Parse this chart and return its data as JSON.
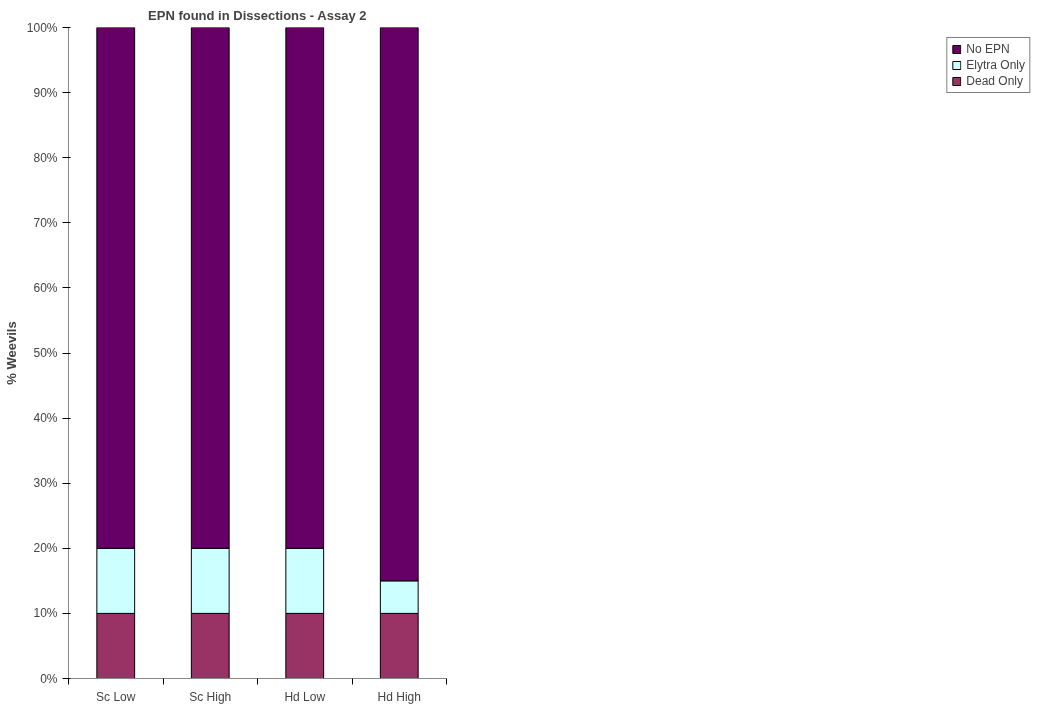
{
  "chart_data": {
    "type": "bar",
    "title": "EPN found in Dissections - Assay 2",
    "ylabel": "% Weevils",
    "categories": [
      "Sc Low",
      "Sc High",
      "Hd Low",
      "Hd High"
    ],
    "stacked": true,
    "series": [
      {
        "name": "Dead Only",
        "color": "#993366",
        "values": [
          10,
          10,
          10,
          10
        ]
      },
      {
        "name": "Elytra Only",
        "color": "#ccffff",
        "values": [
          10,
          10,
          10,
          5
        ]
      },
      {
        "name": "No EPN",
        "color": "#660066",
        "values": [
          80,
          80,
          80,
          85
        ]
      }
    ],
    "ylim": [
      0,
      100
    ],
    "yticks": [
      {
        "value": 0,
        "label": "0%"
      },
      {
        "value": 10,
        "label": "10%"
      },
      {
        "value": 20,
        "label": "20%"
      },
      {
        "value": 30,
        "label": "30%"
      },
      {
        "value": 40,
        "label": "40%"
      },
      {
        "value": 50,
        "label": "50%"
      },
      {
        "value": 60,
        "label": "60%"
      },
      {
        "value": 70,
        "label": "70%"
      },
      {
        "value": 80,
        "label": "80%"
      },
      {
        "value": 90,
        "label": "90%"
      },
      {
        "value": 100,
        "label": "100%"
      }
    ],
    "grid": false,
    "legend": "right"
  }
}
